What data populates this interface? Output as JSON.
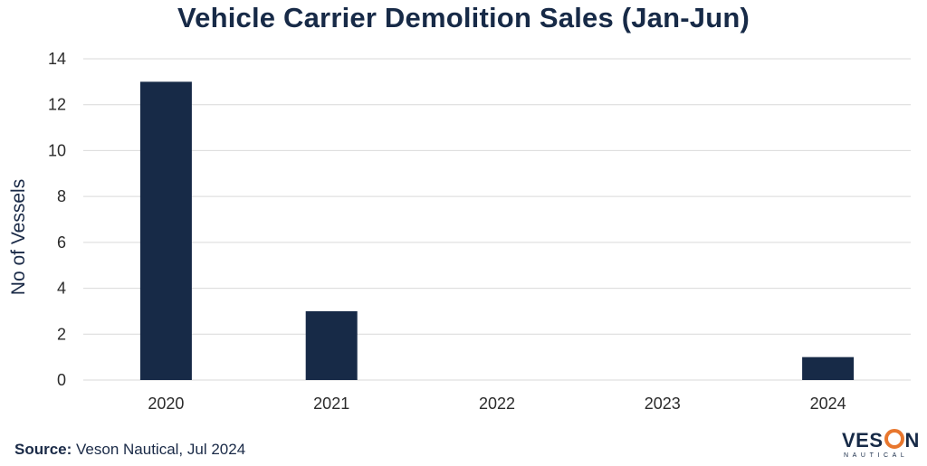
{
  "chart_data": {
    "type": "bar",
    "title": "Vehicle Carrier Demolition Sales (Jan-Jun)",
    "xlabel": "",
    "ylabel": "No of Vessels",
    "categories": [
      "2020",
      "2021",
      "2022",
      "2023",
      "2024"
    ],
    "values": [
      13,
      3,
      0,
      0,
      1
    ],
    "ylim": [
      0,
      14
    ],
    "yticks": [
      0,
      2,
      4,
      6,
      8,
      10,
      12,
      14
    ],
    "grid": true,
    "legend": "none"
  },
  "colors": {
    "bar": "#172a47",
    "grid": "#d9d9d9",
    "logo_accent": "#e8772e"
  },
  "source": {
    "label": "Source:",
    "text": " Veson Nautical, Jul 2024"
  },
  "logo": {
    "part1": "VES",
    "part2": "N",
    "subtitle": "NAUTICAL"
  }
}
